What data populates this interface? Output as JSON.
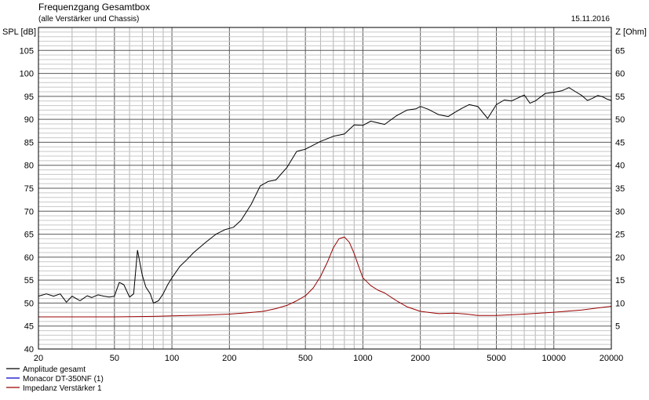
{
  "header": {
    "title": "Frequenzgang Gesamtbox",
    "subtitle": "(alle Verstärker und Chassis)",
    "date": "15.11.2016"
  },
  "chart_data": {
    "type": "line",
    "x_scale": "log",
    "xlim": [
      20,
      20000
    ],
    "ylim_left": [
      40,
      110
    ],
    "ylim_right": [
      0,
      70
    ],
    "ylabel_left": "SPL [dB]",
    "ylabel_right": "Z [Ohm]",
    "x_ticks": [
      20,
      50,
      100,
      200,
      500,
      1000,
      2000,
      5000,
      10000,
      20000
    ],
    "x_tick_labels": [
      "20",
      "50",
      "100",
      "200",
      "500",
      "1000",
      "2000",
      "5000",
      "10000",
      "20000"
    ],
    "y_left_ticks": [
      40,
      45,
      50,
      55,
      60,
      65,
      70,
      75,
      80,
      85,
      90,
      95,
      100,
      105
    ],
    "y_right_ticks": [
      5,
      10,
      15,
      20,
      25,
      30,
      35,
      40,
      45,
      50,
      55,
      60,
      65
    ],
    "grid": true,
    "legend_position": "bottom-left",
    "series": [
      {
        "name": "Amplitude gesamt",
        "axis": "left",
        "color": "#000000",
        "x": [
          20,
          22,
          24,
          26,
          28,
          30,
          33,
          36,
          38,
          41,
          44,
          47,
          50,
          53,
          56,
          60,
          63,
          66,
          70,
          73,
          77,
          80,
          85,
          90,
          95,
          100,
          110,
          120,
          130,
          150,
          170,
          190,
          210,
          230,
          260,
          290,
          320,
          350,
          400,
          450,
          500,
          600,
          700,
          800,
          900,
          1000,
          1100,
          1300,
          1500,
          1700,
          1900,
          2000,
          2200,
          2500,
          2800,
          3000,
          3300,
          3600,
          4000,
          4500,
          5000,
          5500,
          6000,
          7000,
          7500,
          8000,
          9000,
          10000,
          11000,
          12000,
          13000,
          14000,
          15000,
          16000,
          17000,
          18000,
          19000,
          20000
        ],
        "values": [
          51.5,
          52.0,
          51.5,
          52.0,
          50.2,
          51.5,
          50.5,
          51.6,
          51.2,
          51.8,
          51.5,
          51.3,
          51.5,
          54.5,
          54.0,
          51.3,
          52.0,
          61.5,
          56.0,
          53.5,
          52.0,
          50.0,
          50.5,
          52.0,
          54.0,
          55.5,
          58.0,
          59.5,
          61.0,
          63.2,
          65.0,
          66.0,
          66.5,
          68.0,
          71.5,
          75.5,
          76.5,
          76.8,
          79.5,
          83.0,
          83.5,
          85.2,
          86.3,
          86.8,
          88.8,
          88.7,
          89.6,
          88.9,
          90.8,
          92.0,
          92.3,
          92.8,
          92.2,
          91.0,
          90.6,
          91.4,
          92.4,
          93.2,
          92.8,
          90.2,
          93.2,
          94.2,
          94.0,
          95.3,
          93.5,
          94.0,
          95.6,
          95.9,
          96.2,
          96.9,
          96.0,
          95.2,
          94.1,
          94.6,
          95.2,
          94.9,
          94.4,
          94.1
        ]
      },
      {
        "name": "Monacor DT-350NF (1)",
        "axis": "left",
        "color": "#0000cc",
        "x": [],
        "values": []
      },
      {
        "name": "Impedanz Verstärker 1",
        "axis": "right",
        "color": "#990000",
        "x": [
          20,
          50,
          80,
          100,
          150,
          200,
          250,
          300,
          350,
          400,
          450,
          500,
          550,
          600,
          650,
          700,
          750,
          800,
          850,
          900,
          950,
          1000,
          1100,
          1200,
          1300,
          1500,
          1700,
          2000,
          2500,
          3000,
          3500,
          4000,
          5000,
          7000,
          10000,
          14000,
          20000
        ],
        "values": [
          7.0,
          7.0,
          7.1,
          7.2,
          7.4,
          7.6,
          7.9,
          8.2,
          8.8,
          9.5,
          10.5,
          11.6,
          13.3,
          15.8,
          18.8,
          22.0,
          24.0,
          24.4,
          23.2,
          20.8,
          18.0,
          15.5,
          13.8,
          12.8,
          12.2,
          10.5,
          9.2,
          8.2,
          7.7,
          7.8,
          7.6,
          7.3,
          7.3,
          7.6,
          8.0,
          8.5,
          9.3
        ]
      }
    ]
  }
}
